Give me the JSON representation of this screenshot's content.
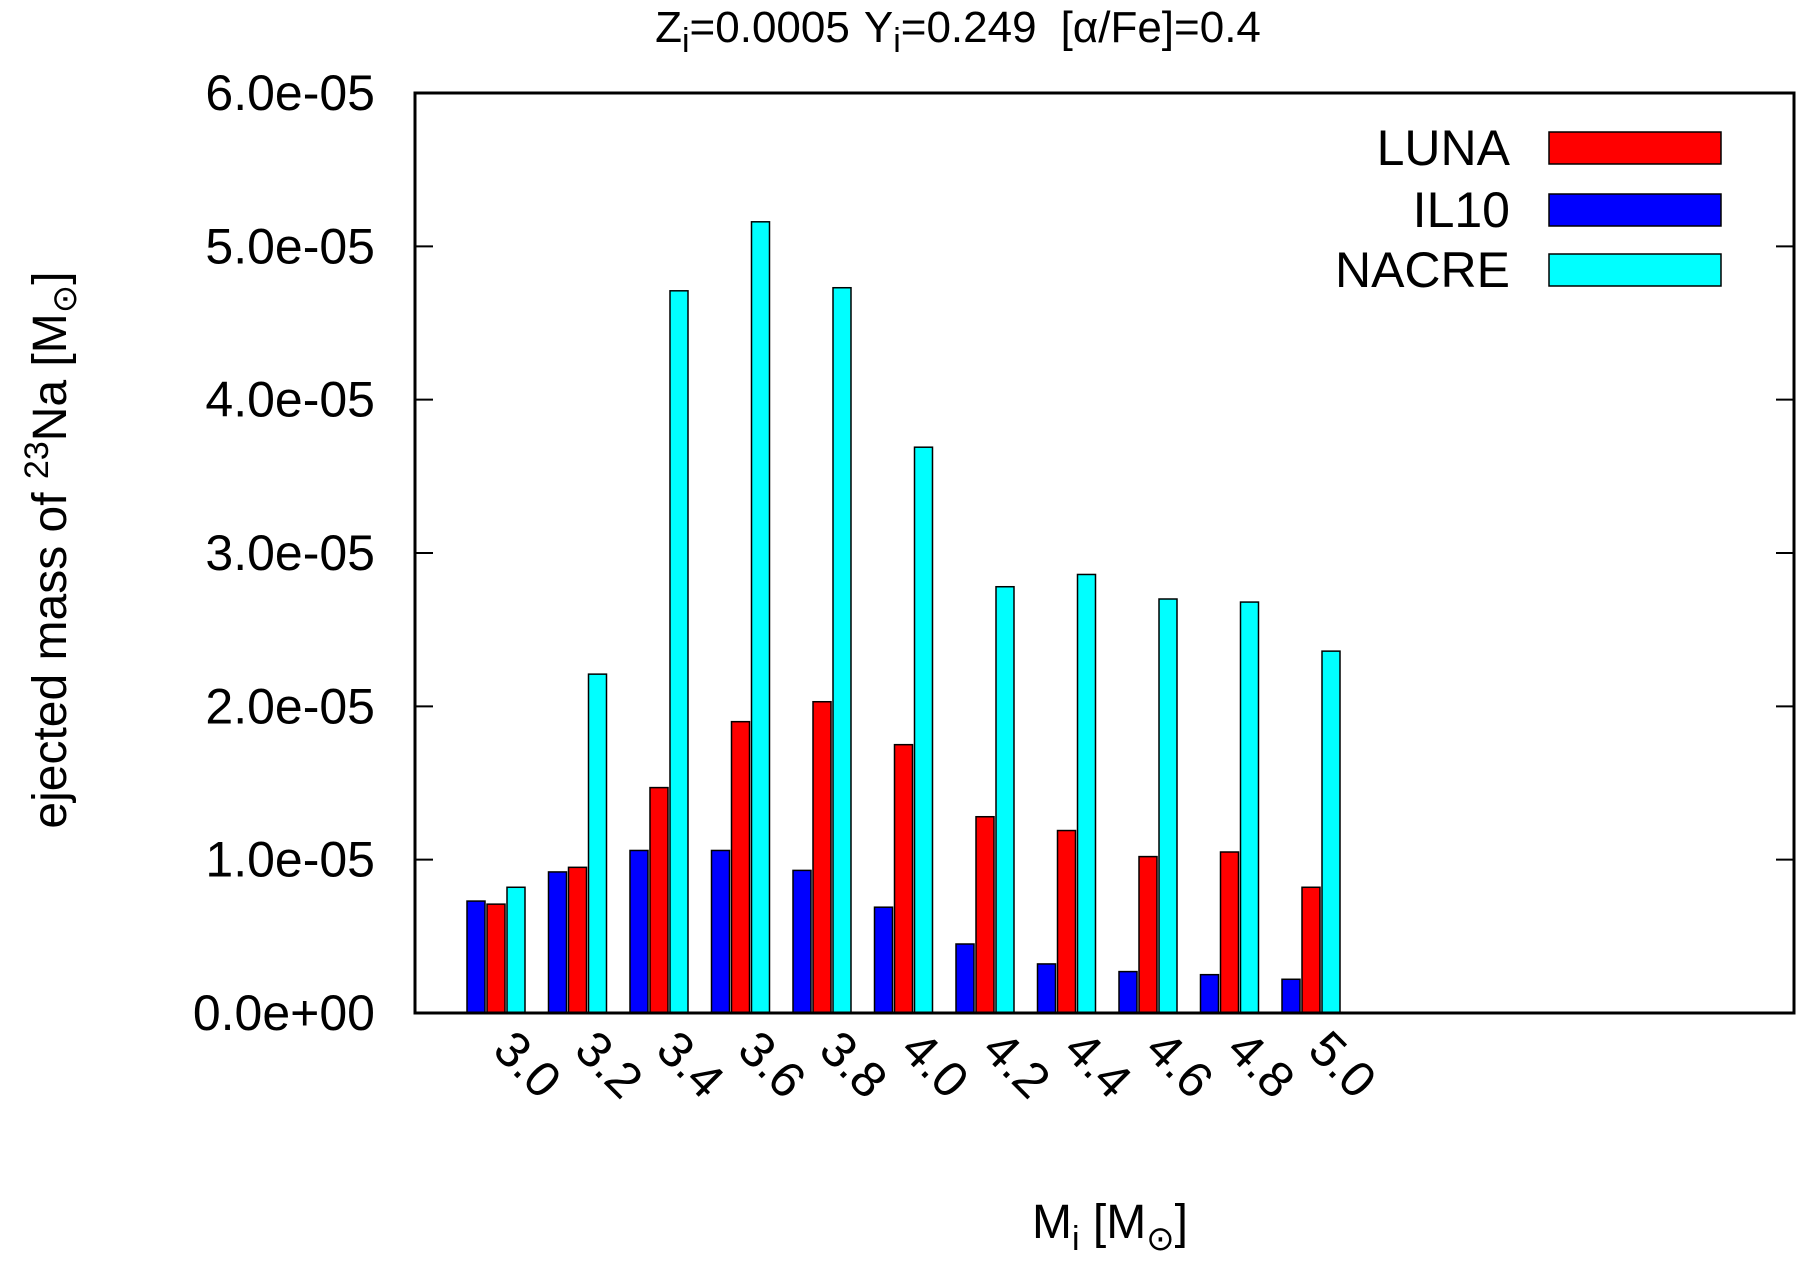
{
  "chart_data": {
    "type": "bar",
    "title": {
      "z_sym": "Z",
      "z_sub": "i",
      "z_val": "=0.0005",
      "y_sym": "Y",
      "y_sub": "i",
      "y_val": "=0.249",
      "alpha": "[α/Fe]=0.4"
    },
    "xlabel": {
      "main": "M",
      "sub": "i",
      "rest1": " [M",
      "sun": "⊙",
      "rest2": "]"
    },
    "ylabel": {
      "pre": "ejected mass  of ",
      "sup": "23",
      "mid": "Na  [M",
      "sun": "⊙",
      "post": "]"
    },
    "categories": [
      "3.0",
      "3.2",
      "3.4",
      "3.6",
      "3.8",
      "4.0",
      "4.2",
      "4.4",
      "4.6",
      "4.8",
      "5.0"
    ],
    "ylim": [
      0,
      6e-05
    ],
    "yticks": [
      {
        "value": 0,
        "label": "0.0e+00"
      },
      {
        "value": 1e-05,
        "label": "1.0e-05"
      },
      {
        "value": 2e-05,
        "label": "2.0e-05"
      },
      {
        "value": 3e-05,
        "label": "3.0e-05"
      },
      {
        "value": 4e-05,
        "label": "4.0e-05"
      },
      {
        "value": 5e-05,
        "label": "5.0e-05"
      },
      {
        "value": 6e-05,
        "label": "6.0e-05"
      }
    ],
    "grid": false,
    "legend_position": "top-right",
    "series": [
      {
        "name": "IL10",
        "color": "#0000ff",
        "values": [
          7.3e-06,
          9.2e-06,
          1.06e-05,
          1.06e-05,
          9.3e-06,
          6.9e-06,
          4.5e-06,
          3.2e-06,
          2.7e-06,
          2.5e-06,
          2.2e-06
        ]
      },
      {
        "name": "LUNA",
        "color": "#ff0000",
        "values": [
          7.1e-06,
          9.5e-06,
          1.47e-05,
          1.9e-05,
          2.03e-05,
          1.75e-05,
          1.28e-05,
          1.19e-05,
          1.02e-05,
          1.05e-05,
          8.2e-06
        ]
      },
      {
        "name": "NACRE",
        "color": "#00ffff",
        "values": [
          8.2e-06,
          2.21e-05,
          4.71e-05,
          5.16e-05,
          4.73e-05,
          3.69e-05,
          2.78e-05,
          2.86e-05,
          2.7e-05,
          2.68e-05,
          2.36e-05
        ]
      }
    ],
    "legend_order": [
      "LUNA",
      "IL10",
      "NACRE"
    ]
  }
}
